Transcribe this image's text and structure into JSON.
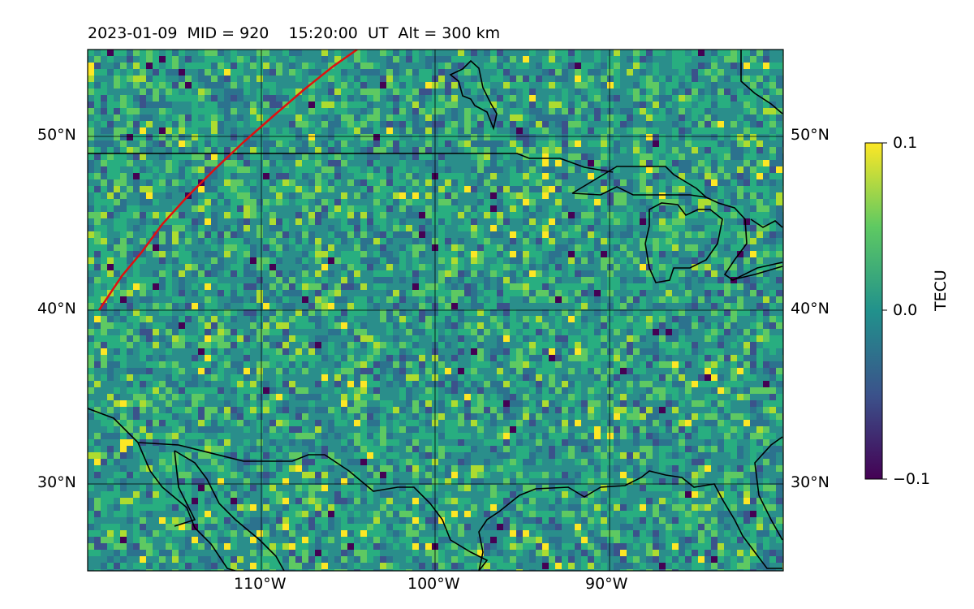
{
  "title": "2023-01-09  MID = 920    15:20:00  UT  Alt = 300 km",
  "map": {
    "lon_range": [
      -120,
      -80
    ],
    "lat_range": [
      25,
      55
    ],
    "lat_labels": [
      "50°N",
      "40°N",
      "30°N"
    ],
    "lon_labels": [
      "110°W",
      "100°W",
      "90°W"
    ],
    "background_color": "#2a8e8b",
    "terminator_color": "#e01010"
  },
  "colorbar": {
    "label": "TECU",
    "ticks": [
      "0.1",
      "0.0",
      "−0.1"
    ],
    "stops": [
      "#440154",
      "#3b528b",
      "#21918c",
      "#5ec962",
      "#fde725"
    ]
  }
}
